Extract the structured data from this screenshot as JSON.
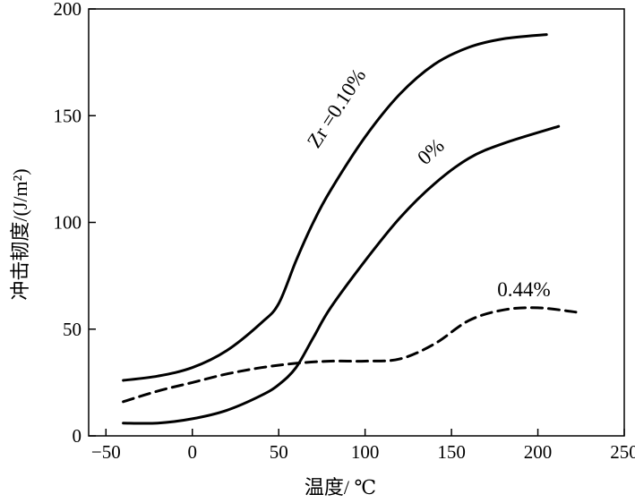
{
  "chart_data": {
    "type": "line",
    "xlabel": "温度/ ℃",
    "ylabel": "冲击韧度/(J/m²)",
    "xlim": [
      -60,
      250
    ],
    "ylim": [
      0,
      200
    ],
    "xticks": [
      -50,
      0,
      50,
      100,
      150,
      200,
      250
    ],
    "yticks": [
      0,
      50,
      100,
      150,
      200
    ],
    "grid": false,
    "series": [
      {
        "name": "Zr =0.10%",
        "style": "solid",
        "x": [
          -40,
          -20,
          0,
          20,
          40,
          50,
          60,
          70,
          80,
          100,
          120,
          140,
          160,
          180,
          205
        ],
        "y": [
          26,
          28,
          32,
          40,
          53,
          62,
          82,
          100,
          115,
          140,
          160,
          174,
          182,
          186,
          188
        ]
      },
      {
        "name": "0%",
        "style": "solid",
        "x": [
          -40,
          -20,
          0,
          20,
          40,
          50,
          60,
          70,
          80,
          100,
          120,
          140,
          160,
          180,
          212
        ],
        "y": [
          6,
          6,
          8,
          12,
          19,
          24,
          32,
          46,
          60,
          82,
          102,
          118,
          130,
          137,
          145
        ]
      },
      {
        "name": "0.44%",
        "style": "dashed",
        "x": [
          -40,
          -20,
          0,
          20,
          40,
          60,
          80,
          100,
          120,
          140,
          160,
          180,
          200,
          222
        ],
        "y": [
          16,
          21,
          25,
          29,
          32,
          34,
          35,
          35,
          36,
          43,
          54,
          59,
          60,
          58
        ]
      }
    ]
  }
}
